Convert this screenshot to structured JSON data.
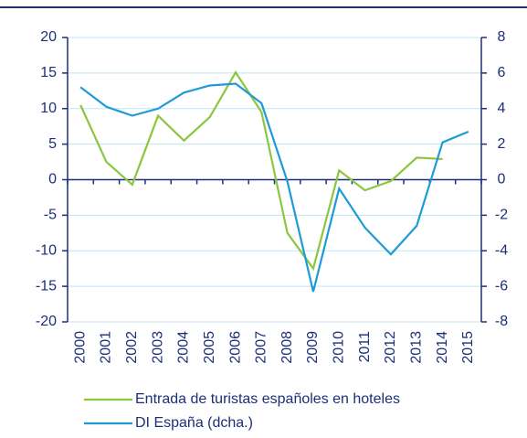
{
  "chart_data": {
    "type": "line",
    "categories": [
      "2000",
      "2001",
      "2002",
      "2003",
      "2004",
      "2005",
      "2006",
      "2007",
      "2008",
      "2009",
      "2010",
      "2011",
      "2012",
      "2013",
      "2014",
      "2015"
    ],
    "series": [
      {
        "name": "Entrada de turistas españoles en hoteles",
        "color": "#8cc63e",
        "values": [
          10.5,
          2.5,
          -0.7,
          9,
          5.5,
          8.8,
          15.1,
          9.5,
          -7.5,
          -12.5,
          1.3,
          -1.5,
          -0.2,
          3.1,
          2.9,
          null
        ]
      },
      {
        "name": "DI España (dcha.)",
        "color": "#1e9bd7",
        "axis": "y2",
        "values": [
          5.2,
          4.1,
          3.6,
          4.0,
          4.9,
          5.3,
          5.4,
          4.3,
          -0.1,
          -6.3,
          -0.5,
          -2.7,
          -4.2,
          -2.6,
          2.1,
          2.7
        ]
      }
    ],
    "ylim": [
      -20,
      20
    ],
    "yticks": [
      -20,
      -15,
      -10,
      -5,
      0,
      5,
      10,
      15,
      20
    ],
    "y2lim": [
      -8,
      8
    ],
    "y2ticks": [
      -8,
      -6,
      -4,
      -2,
      0,
      2,
      4,
      6,
      8
    ],
    "grid": true
  }
}
